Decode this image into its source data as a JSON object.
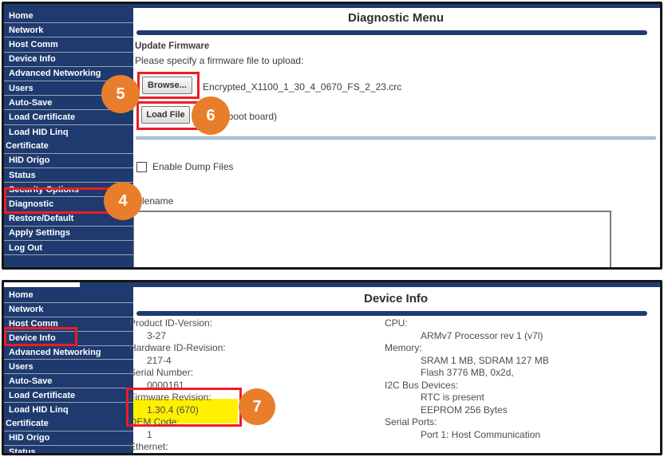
{
  "colors": {
    "navy": "#1f3a6e",
    "red": "#ed1c24",
    "orange": "#e87e2b",
    "yellow": "#fff000"
  },
  "callouts": {
    "step4": "4",
    "step5": "5",
    "step6": "6",
    "step7": "7"
  },
  "sidebar": {
    "items": [
      "Home",
      "Network",
      "Host Comm",
      "Device Info",
      "Advanced Networking",
      "Users",
      "Auto-Save",
      "Load Certificate",
      "Load HID Linq",
      "Certificate",
      "HID Origo",
      "Status",
      "Security Options",
      "Diagnostic",
      "Restore/Default",
      "Apply Settings",
      "Log Out"
    ]
  },
  "diagnostic": {
    "title": "Diagnostic Menu",
    "section_title": "Update Firmware",
    "instruction": "Please specify a firmware file to upload:",
    "browse_label": "Browse...",
    "firmware_filename": "Encrypted_X1100_1_30_4_0670_FS_2_23.crc",
    "load_label": "Load File",
    "load_note": "(reboot board)",
    "dump_checkbox_label": "Enable Dump Files",
    "filename_label": "Filename",
    "dump_filename_value": ""
  },
  "device_info": {
    "title": "Device Info",
    "left": [
      "Product ID-Version:",
      "3-27",
      "Hardware ID-Revision:",
      "217-4",
      "Serial Number:",
      "0000161",
      "Firmware Revision:",
      "1.30.4 (670)",
      "OEM Code:",
      "1",
      "Ethernet:"
    ],
    "right": [
      "CPU:",
      "ARMv7 Processor rev 1 (v7l)",
      "Memory:",
      "SRAM 1 MB, SDRAM 127 MB",
      "Flash 3776 MB, 0x2d,",
      "I2C Bus Devices:",
      "RTC is present",
      "EEPROM 256 Bytes",
      "Serial Ports:",
      "Port 1: Host Communication"
    ]
  }
}
